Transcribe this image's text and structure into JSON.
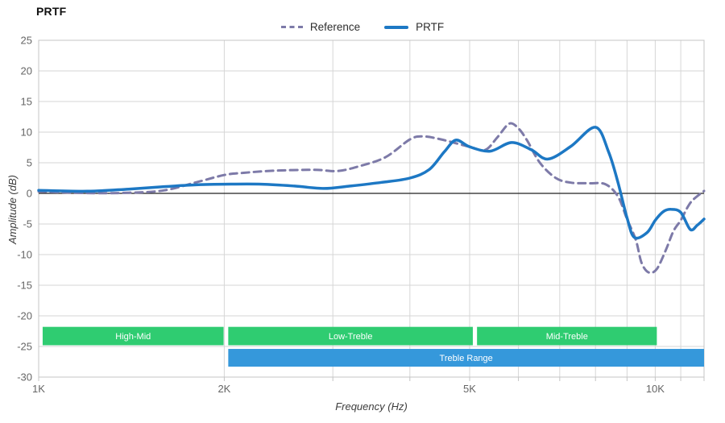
{
  "title": "PRTF",
  "legend": {
    "items": [
      {
        "label": "Reference"
      },
      {
        "label": "PRTF"
      }
    ]
  },
  "chart_data": {
    "type": "line",
    "title": "PRTF",
    "xlabel": "Frequency (Hz)",
    "ylabel": "Amplitude (dB)",
    "x_scale": "log",
    "xlim": [
      1000,
      12000
    ],
    "ylim": [
      -30,
      25
    ],
    "y_tick_step": 5,
    "grid": true,
    "legend_position": "top-center",
    "x_ticks": [
      {
        "value": 1000,
        "label": "1K"
      },
      {
        "value": 2000,
        "label": "2K"
      },
      {
        "value": 5000,
        "label": "5K"
      },
      {
        "value": 10000,
        "label": "10K"
      }
    ],
    "x_gridlines_khz": [
      1,
      2,
      3,
      4,
      5,
      6,
      7,
      8,
      9,
      10,
      11,
      12
    ],
    "colors": {
      "grid": "#d6d6d6",
      "border": "#c4c4c4",
      "zero_line": "#222222",
      "tick_text": "#666666",
      "band_green": "#2fcc71",
      "band_blue": "#3598db"
    },
    "series": [
      {
        "name": "Reference",
        "color": "#7d7aa8",
        "style": "dashed",
        "width": 3,
        "dash": "9 6",
        "points": [
          [
            1000,
            0.3
          ],
          [
            1200,
            0.05
          ],
          [
            1400,
            0.1
          ],
          [
            1600,
            0.5
          ],
          [
            1800,
            1.8
          ],
          [
            2000,
            3.0
          ],
          [
            2150,
            3.35
          ],
          [
            2400,
            3.7
          ],
          [
            2800,
            3.85
          ],
          [
            3050,
            3.65
          ],
          [
            3300,
            4.4
          ],
          [
            3650,
            5.9
          ],
          [
            4000,
            8.8
          ],
          [
            4200,
            9.3
          ],
          [
            4500,
            8.8
          ],
          [
            5000,
            7.6
          ],
          [
            5300,
            7.1
          ],
          [
            5550,
            9.2
          ],
          [
            5800,
            11.4
          ],
          [
            6000,
            10.6
          ],
          [
            6200,
            8.6
          ],
          [
            6500,
            5.0
          ],
          [
            6900,
            2.5
          ],
          [
            7300,
            1.75
          ],
          [
            7800,
            1.65
          ],
          [
            8300,
            1.5
          ],
          [
            8700,
            -0.5
          ],
          [
            9000,
            -4.2
          ],
          [
            9300,
            -7.6
          ],
          [
            9500,
            -11.3
          ],
          [
            9750,
            -12.9
          ],
          [
            10050,
            -12.4
          ],
          [
            10400,
            -9.3
          ],
          [
            10700,
            -6.2
          ],
          [
            11000,
            -4.4
          ],
          [
            11250,
            -2.5
          ],
          [
            11500,
            -1.1
          ],
          [
            12000,
            0.4
          ]
        ]
      },
      {
        "name": "PRTF",
        "color": "#1d78c4",
        "style": "solid",
        "width": 3.5,
        "dash": null,
        "points": [
          [
            1000,
            0.5
          ],
          [
            1200,
            0.35
          ],
          [
            1400,
            0.7
          ],
          [
            1600,
            1.1
          ],
          [
            1800,
            1.4
          ],
          [
            2000,
            1.5
          ],
          [
            2300,
            1.5
          ],
          [
            2600,
            1.2
          ],
          [
            2900,
            0.8
          ],
          [
            3200,
            1.2
          ],
          [
            3600,
            1.8
          ],
          [
            4000,
            2.5
          ],
          [
            4300,
            3.9
          ],
          [
            4550,
            6.8
          ],
          [
            4750,
            8.7
          ],
          [
            5000,
            7.6
          ],
          [
            5400,
            6.9
          ],
          [
            5850,
            8.3
          ],
          [
            6300,
            7.1
          ],
          [
            6700,
            5.6
          ],
          [
            7300,
            7.7
          ],
          [
            8000,
            10.8
          ],
          [
            8400,
            6.8
          ],
          [
            8700,
            1.8
          ],
          [
            9000,
            -4.0
          ],
          [
            9250,
            -7.2
          ],
          [
            9700,
            -6.4
          ],
          [
            10000,
            -4.4
          ],
          [
            10300,
            -3.0
          ],
          [
            10600,
            -2.6
          ],
          [
            11000,
            -3.1
          ],
          [
            11400,
            -5.9
          ],
          [
            11700,
            -5.2
          ],
          [
            12000,
            -4.2
          ]
        ]
      }
    ],
    "bands": [
      {
        "label": "High-Mid",
        "color": "#2fcc71",
        "x": [
          1015,
          1995
        ],
        "y": [
          -21.8,
          -24.8
        ]
      },
      {
        "label": "Low-Treble",
        "color": "#2fcc71",
        "x": [
          2030,
          5060
        ],
        "y": [
          -21.8,
          -24.8
        ]
      },
      {
        "label": "Mid-Treble",
        "color": "#2fcc71",
        "x": [
          5140,
          10060
        ],
        "y": [
          -21.8,
          -24.8
        ]
      },
      {
        "label": "Treble Range",
        "color": "#3598db",
        "x": [
          2030,
          12000
        ],
        "y": [
          -25.4,
          -28.3
        ]
      }
    ]
  }
}
